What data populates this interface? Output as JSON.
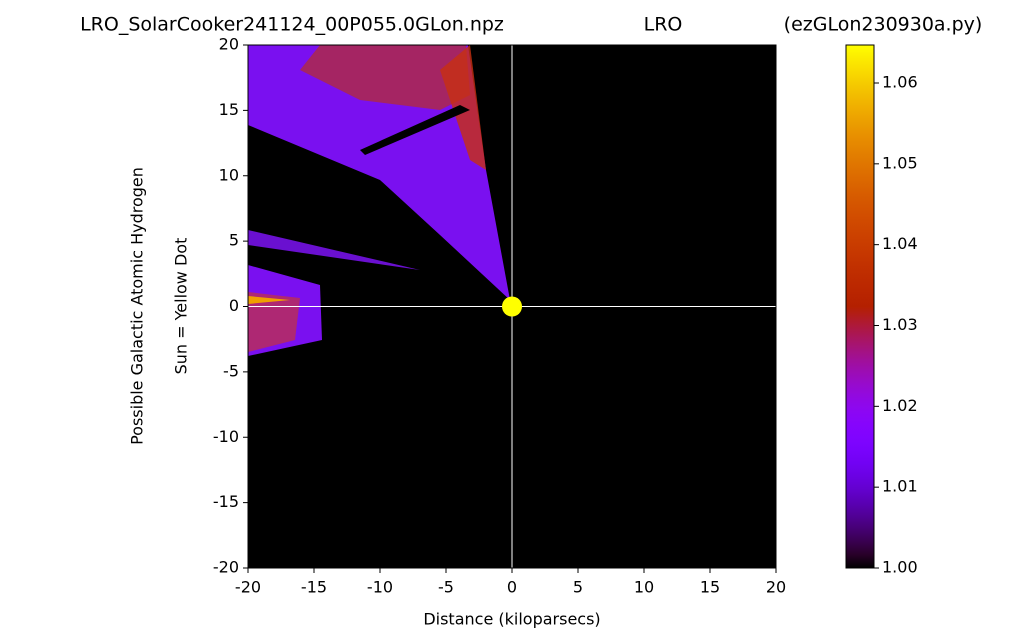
{
  "chart_data": {
    "type": "heatmap",
    "title": "LRO_SolarCooker241124_00P055.0GLon.npz",
    "subtitle": "LRO",
    "annotation": "(ezGLon230930a.py)",
    "xlabel": "Distance (kiloparsecs)",
    "ylabel": [
      "Possible Galactic Atomic Hydrogen",
      "Sun = Yellow Dot"
    ],
    "xlim": [
      -20,
      20
    ],
    "xticks": [
      -20,
      -15,
      -10,
      -5,
      0,
      5,
      10,
      15,
      20
    ],
    "ylim": [
      -20,
      20
    ],
    "yticks": [
      -20,
      -15,
      -10,
      -5,
      0,
      5,
      10,
      15,
      20
    ],
    "sun": {
      "x": 0,
      "y": 0,
      "color": "#ffff00"
    },
    "colormap": "gnuplot",
    "clim": [
      1.0,
      1.0647
    ],
    "cticks": [
      {
        "value": 1.0,
        "label": "1.00"
      },
      1.01,
      1.02,
      1.03,
      1.04,
      1.05,
      1.06
    ]
  }
}
